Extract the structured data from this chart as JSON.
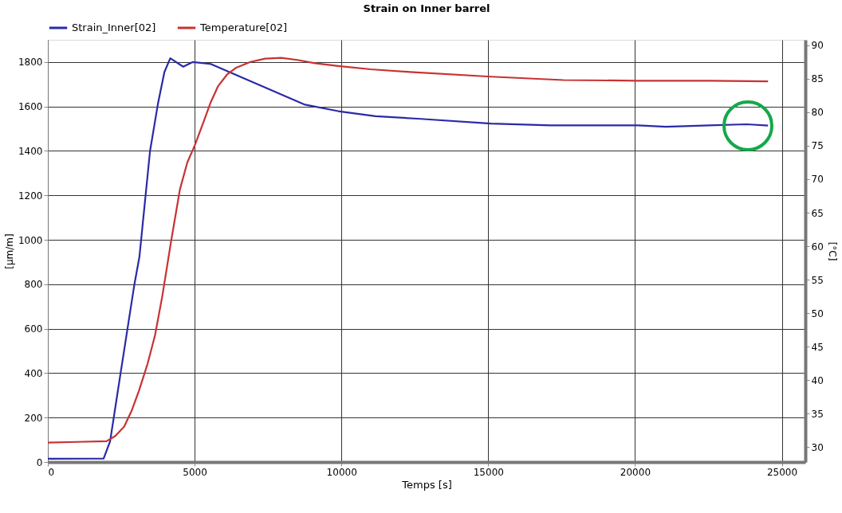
{
  "chart_data": {
    "type": "line",
    "title": "Strain on Inner barrel",
    "xlabel": "Temps [s]",
    "ylabel": "[µm/m]",
    "y2label": "[°C]",
    "xlim": [
      0,
      25800
    ],
    "xticks": [
      0,
      5000,
      10000,
      15000,
      20000,
      25000
    ],
    "ylim": [
      0,
      1900
    ],
    "yticks": [
      0,
      200,
      400,
      600,
      800,
      1000,
      1200,
      1400,
      1600,
      1800
    ],
    "y2lim": [
      27.8,
      90.8
    ],
    "y2ticks": [
      30,
      35,
      40,
      45,
      50,
      55,
      60,
      65,
      70,
      75,
      80,
      85,
      90
    ],
    "grid": true,
    "legend": "top left",
    "line_style": "solid",
    "marker": "none",
    "series": [
      {
        "name": "Strain_Inner[02]",
        "color": "#2a2aa8",
        "x": [
          0,
          1900,
          2120,
          2480,
          2940,
          3120,
          3480,
          3750,
          3970,
          4170,
          4610,
          4930,
          5560,
          8760,
          9890,
          11160,
          12600,
          15090,
          17120,
          20100,
          21050,
          22540,
          23800,
          24530
        ],
        "values": [
          15,
          16,
          93,
          402,
          793,
          924,
          1399,
          1612,
          1755,
          1817,
          1779,
          1800,
          1791,
          1608,
          1579,
          1556,
          1545,
          1523,
          1515,
          1515,
          1509,
          1515,
          1520,
          1514
        ]
      },
      {
        "name": "Temperature[02]",
        "color": "#c83232",
        "axis": "y2",
        "x": [
          0,
          1000,
          2000,
          2300,
          2600,
          2850,
          3100,
          3400,
          3650,
          3900,
          4200,
          4500,
          4750,
          5000,
          5300,
          5550,
          5800,
          6100,
          6400,
          6900,
          7400,
          7950,
          8500,
          9100,
          9890,
          11000,
          12330,
          15090,
          17560,
          20100,
          22600,
          24530
        ],
        "values": [
          30.7,
          30.8,
          30.9,
          31.7,
          33.1,
          35.4,
          38.4,
          42.5,
          46.7,
          52.6,
          60.8,
          68.5,
          72.5,
          75.0,
          78.5,
          81.5,
          83.9,
          85.6,
          86.6,
          87.5,
          88.0,
          88.1,
          87.8,
          87.3,
          86.9,
          86.4,
          86.0,
          85.3,
          84.8,
          84.7,
          84.7,
          84.6
        ]
      }
    ]
  }
}
